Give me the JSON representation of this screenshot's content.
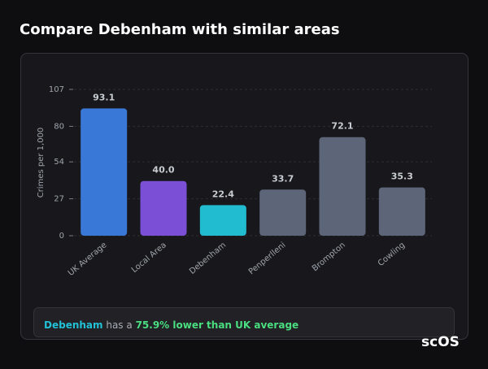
{
  "chart_data": {
    "type": "bar",
    "title": "Compare Debenham with similar areas",
    "y_label": "Crimes per 1,000",
    "categories": [
      "UK Average",
      "Local Area",
      "Debenham",
      "Penperlleni",
      "Brompton",
      "Cowling"
    ],
    "values": [
      93.1,
      40.0,
      22.4,
      33.7,
      72.1,
      35.3
    ],
    "value_labels": [
      "93.1",
      "40.0",
      "22.4",
      "33.7",
      "72.1",
      "35.3"
    ],
    "colors": [
      "#3a78d8",
      "#7b4fd6",
      "#22bcd0",
      "#5c6678",
      "#5c6678",
      "#5c6678"
    ],
    "ylim": [
      0,
      107
    ],
    "yticks": [
      0,
      27,
      54,
      80,
      107
    ],
    "grid": true
  },
  "summary": {
    "area": "Debenham",
    "text": "has a",
    "comparison": "75.9% lower than UK average"
  },
  "logo": "scOS"
}
